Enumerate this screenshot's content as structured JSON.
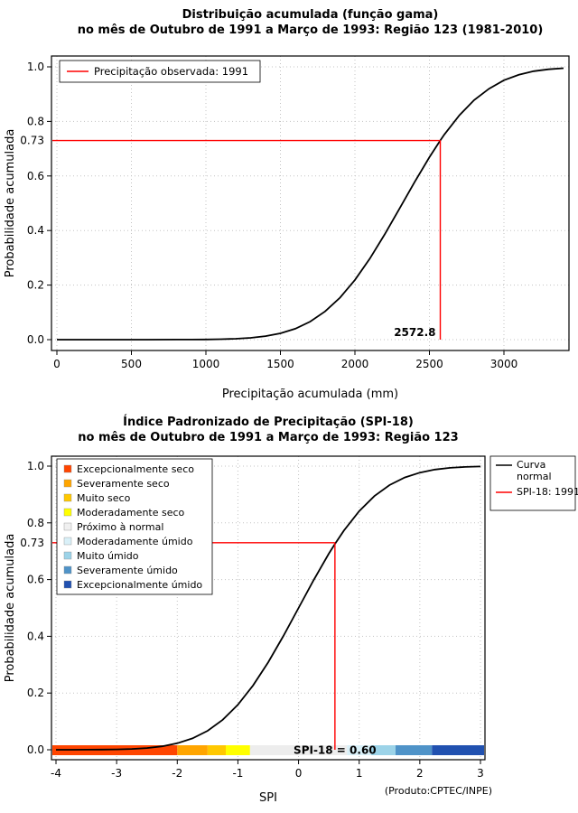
{
  "footer_note": "(Produto:CPTEC/INPE)",
  "chart_data": [
    {
      "type": "line",
      "title_line1": "Distribuição acumulada (função gama)",
      "title_line2": "no mês de Outubro de 1991 a Março de 1993: Região 123 (1981-2010)",
      "xlabel": "Precipitação acumulada (mm)",
      "ylabel": "Probabilidade acumulada",
      "xlim": [
        0,
        3400
      ],
      "ylim": [
        0,
        1
      ],
      "xticks": [
        0,
        500,
        1000,
        1500,
        2000,
        2500,
        3000
      ],
      "yticks": [
        0,
        0.2,
        0.4,
        0.6,
        0.8,
        1
      ],
      "grid": true,
      "marker": {
        "x": 2572.8,
        "y": 0.73,
        "x_label": "2572.8",
        "y_label": "0.73",
        "color": "#FF0000"
      },
      "legend": [
        {
          "label": "Precipitação observada: 1991",
          "color": "#FF0000"
        }
      ],
      "series": [
        {
          "name": "gamma-cdf-curve",
          "color": "#000000",
          "points": [
            [
              0,
              0
            ],
            [
              300,
              0
            ],
            [
              600,
              0.0001
            ],
            [
              800,
              0.0002
            ],
            [
              900,
              0.0004
            ],
            [
              1000,
              0.0007
            ],
            [
              1100,
              0.0015
            ],
            [
              1200,
              0.0033
            ],
            [
              1300,
              0.0066
            ],
            [
              1400,
              0.0128
            ],
            [
              1500,
              0.0233
            ],
            [
              1600,
              0.0402
            ],
            [
              1700,
              0.0662
            ],
            [
              1800,
              0.1035
            ],
            [
              1900,
              0.154
            ],
            [
              2000,
              0.219
            ],
            [
              2100,
              0.297
            ],
            [
              2200,
              0.386
            ],
            [
              2300,
              0.481
            ],
            [
              2400,
              0.577
            ],
            [
              2500,
              0.669
            ],
            [
              2572.8,
              0.73
            ],
            [
              2600,
              0.752
            ],
            [
              2700,
              0.822
            ],
            [
              2800,
              0.878
            ],
            [
              2900,
              0.92
            ],
            [
              3000,
              0.951
            ],
            [
              3100,
              0.971
            ],
            [
              3200,
              0.984
            ],
            [
              3300,
              0.991
            ],
            [
              3400,
              0.995
            ]
          ]
        }
      ]
    },
    {
      "type": "line",
      "title_line1": "Índice Padronizado de Precipitação (SPI-18)",
      "title_line2": "no mês de Outubro de 1991 a Março de 1993: Região 123",
      "xlabel": "SPI",
      "ylabel": "Probabilidade acumulada",
      "xlim": [
        -4,
        3
      ],
      "ylim": [
        0,
        1
      ],
      "xticks": [
        -4,
        -3,
        -2,
        -1,
        0,
        1,
        2,
        3
      ],
      "yticks": [
        0,
        0.2,
        0.4,
        0.6,
        0.8,
        1
      ],
      "grid": true,
      "marker": {
        "x": 0.6,
        "y": 0.73,
        "y_label": "0.73",
        "color": "#FF0000"
      },
      "legend_categories": [
        {
          "label": "Excepcionalmente seco",
          "color": "#FF4500"
        },
        {
          "label": "Severamente seco",
          "color": "#FFA500"
        },
        {
          "label": "Muito seco",
          "color": "#FFC800"
        },
        {
          "label": "Moderadamente seco",
          "color": "#FFFF00"
        },
        {
          "label": "Próximo à normal",
          "color": "#F0F0F0"
        },
        {
          "label": "Moderadamente úmido",
          "color": "#D9F0F8"
        },
        {
          "label": "Muito úmido",
          "color": "#9CD3E8"
        },
        {
          "label": "Severamente úmido",
          "color": "#4F93C8"
        },
        {
          "label": "Excepcionalmente úmido",
          "color": "#2151B0"
        }
      ],
      "legend_series": [
        {
          "lines": [
            "Curva",
            "normal"
          ],
          "color": "#000000"
        },
        {
          "lines": [
            "SPI-18: 1991"
          ],
          "color": "#FF0000"
        }
      ],
      "category_bar": {
        "label": "SPI-18 = 0.60",
        "label_x": 0.6,
        "segments": [
          {
            "from": -4.3,
            "to": -2,
            "color": "#FF4500"
          },
          {
            "from": -2,
            "to": -1.5,
            "color": "#FFA500"
          },
          {
            "from": -1.5,
            "to": -1.2,
            "color": "#FFC800"
          },
          {
            "from": -1.2,
            "to": -0.8,
            "color": "#FFFF00"
          },
          {
            "from": -0.8,
            "to": 0.8,
            "color": "#EDEDED"
          },
          {
            "from": 0.8,
            "to": 1.2,
            "color": "#D9F0F8"
          },
          {
            "from": 1.2,
            "to": 1.6,
            "color": "#9CD3E8"
          },
          {
            "from": 1.6,
            "to": 2.2,
            "color": "#4F93C8"
          },
          {
            "from": 2.2,
            "to": 3.3,
            "color": "#2151B0"
          }
        ]
      },
      "series": [
        {
          "name": "normal-cdf-curve",
          "color": "#000000",
          "points": [
            [
              -4,
              3e-05
            ],
            [
              -3.75,
              9e-05
            ],
            [
              -3.5,
              0.0002
            ],
            [
              -3.25,
              0.0006
            ],
            [
              -3,
              0.0013
            ],
            [
              -2.75,
              0.003
            ],
            [
              -2.5,
              0.0062
            ],
            [
              -2.25,
              0.0122
            ],
            [
              -2,
              0.0228
            ],
            [
              -1.75,
              0.0401
            ],
            [
              -1.5,
              0.0668
            ],
            [
              -1.25,
              0.1056
            ],
            [
              -1,
              0.1587
            ],
            [
              -0.75,
              0.2266
            ],
            [
              -0.5,
              0.3085
            ],
            [
              -0.25,
              0.4013
            ],
            [
              0,
              0.5
            ],
            [
              0.25,
              0.5987
            ],
            [
              0.5,
              0.6915
            ],
            [
              0.6,
              0.7257
            ],
            [
              0.75,
              0.7734
            ],
            [
              1,
              0.8413
            ],
            [
              1.25,
              0.8944
            ],
            [
              1.5,
              0.9332
            ],
            [
              1.75,
              0.9599
            ],
            [
              2,
              0.9772
            ],
            [
              2.25,
              0.9878
            ],
            [
              2.5,
              0.9938
            ],
            [
              2.75,
              0.997
            ],
            [
              3,
              0.9987
            ]
          ]
        }
      ]
    }
  ]
}
